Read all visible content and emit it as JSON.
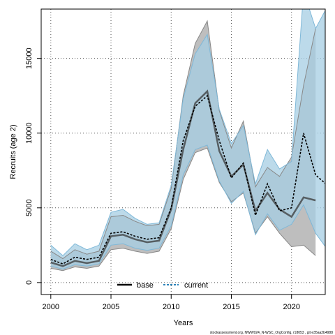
{
  "chart_data": {
    "type": "line",
    "xlabel": "Years",
    "ylabel": "Recruits (age 2)",
    "xlim": [
      1999.2,
      2022.8
    ],
    "ylim": [
      -800,
      18300
    ],
    "x_ticks": [
      2000,
      2005,
      2010,
      2015,
      2020
    ],
    "y_ticks": [
      0,
      5000,
      10000,
      15000
    ],
    "grid": true,
    "legend_position": "bottom-center",
    "footnote": "stockassessment.org, NWW024_N-WSC_OrgConfig, r18053 , git e35aa2b4988",
    "series": [
      {
        "name": "base",
        "color": "#000000",
        "band_color": "#bebebe",
        "x": [
          2000,
          2001,
          2002,
          2003,
          2004,
          2005,
          2006,
          2007,
          2008,
          2009,
          2010,
          2011,
          2012,
          2013,
          2014,
          2015,
          2016,
          2017,
          2018,
          2019,
          2020,
          2021,
          2022
        ],
        "values": [
          1350,
          1100,
          1450,
          1300,
          1450,
          3100,
          3200,
          2900,
          2700,
          2800,
          4900,
          8900,
          12000,
          12800,
          8800,
          7100,
          7900,
          4800,
          6000,
          4900,
          4400,
          5700,
          5500
        ],
        "lower": [
          950,
          800,
          1050,
          950,
          1100,
          2200,
          2300,
          2100,
          1950,
          2100,
          3600,
          6900,
          8700,
          9000,
          6700,
          5400,
          6000,
          3300,
          4400,
          3300,
          2400,
          2500,
          1800
        ],
        "upper": [
          2100,
          1600,
          2200,
          1900,
          2100,
          4400,
          4500,
          4100,
          3800,
          3900,
          6300,
          12500,
          16000,
          17500,
          11500,
          9000,
          10800,
          6400,
          7700,
          7100,
          8400,
          13200,
          17000
        ]
      },
      {
        "name": "current",
        "color": "#000000",
        "line_color": "#2b83ba",
        "band_color": "#a6cee3",
        "x": [
          2000,
          2001,
          2002,
          2003,
          2004,
          2005,
          2006,
          2007,
          2008,
          2009,
          2010,
          2011,
          2012,
          2013,
          2014,
          2015,
          2016,
          2017,
          2018,
          2019,
          2020,
          2021,
          2022,
          2023
        ],
        "values": [
          1550,
          1250,
          1700,
          1550,
          1700,
          3300,
          3400,
          3100,
          2900,
          3000,
          5000,
          9500,
          11800,
          12500,
          9500,
          7000,
          8000,
          4500,
          6600,
          4800,
          5000,
          10000,
          7200,
          6500
        ],
        "lower": [
          1100,
          900,
          1200,
          1100,
          1250,
          2500,
          2600,
          2300,
          2150,
          2300,
          3800,
          7200,
          8900,
          9200,
          6800,
          5300,
          6100,
          3200,
          4600,
          3500,
          3900,
          5200,
          3300,
          2200
        ],
        "upper": [
          2500,
          1800,
          2600,
          2200,
          2500,
          4700,
          4900,
          4300,
          3900,
          4000,
          6500,
          12300,
          15300,
          16600,
          11600,
          9300,
          10500,
          6600,
          8900,
          7600,
          8100,
          19500,
          17000,
          18500
        ]
      }
    ]
  }
}
